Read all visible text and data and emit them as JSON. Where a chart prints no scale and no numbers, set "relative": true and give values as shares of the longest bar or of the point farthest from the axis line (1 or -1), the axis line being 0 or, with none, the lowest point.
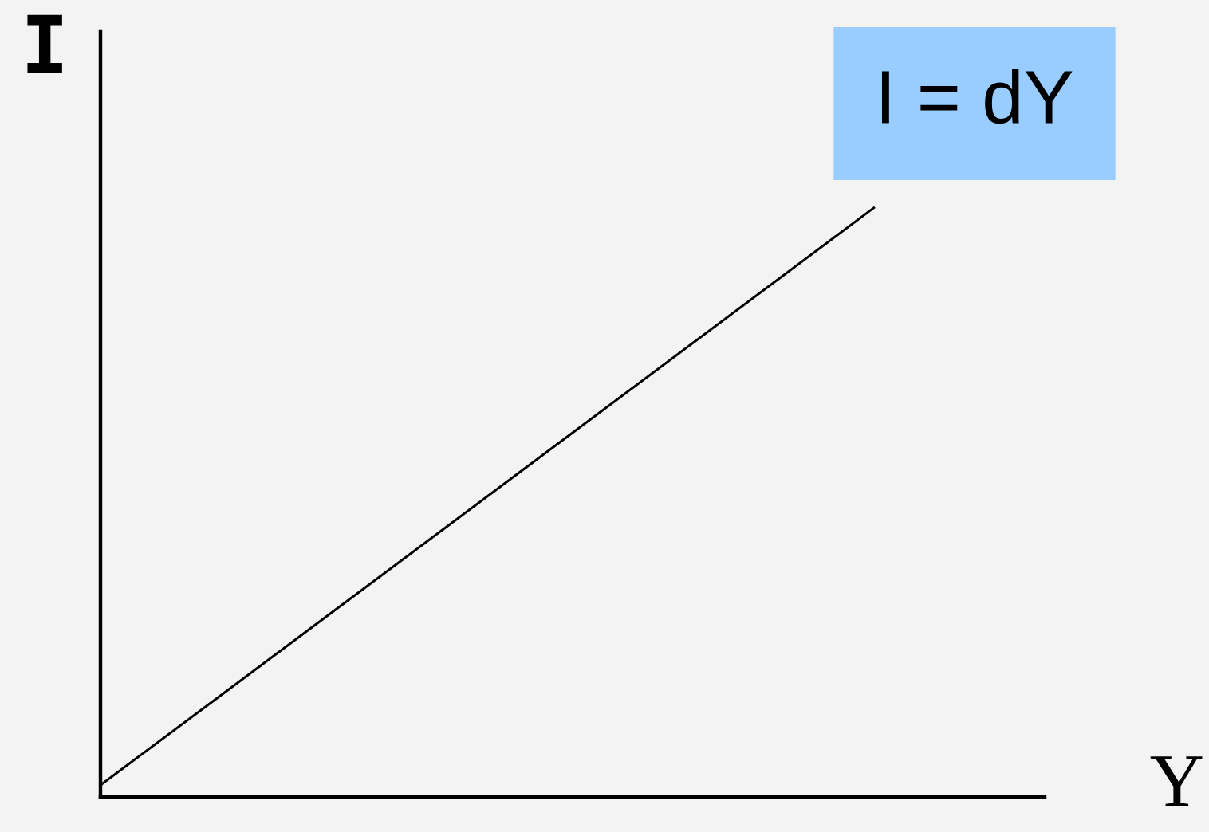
{
  "chart_data": {
    "type": "line",
    "relative": true,
    "categories": [
      null,
      null
    ],
    "values": [
      0.02,
      1
    ],
    "color": "#000000",
    "line_style": "solid",
    "xlabel": "Y",
    "ylabel": "I",
    "annotations": [
      "I = dY"
    ]
  }
}
